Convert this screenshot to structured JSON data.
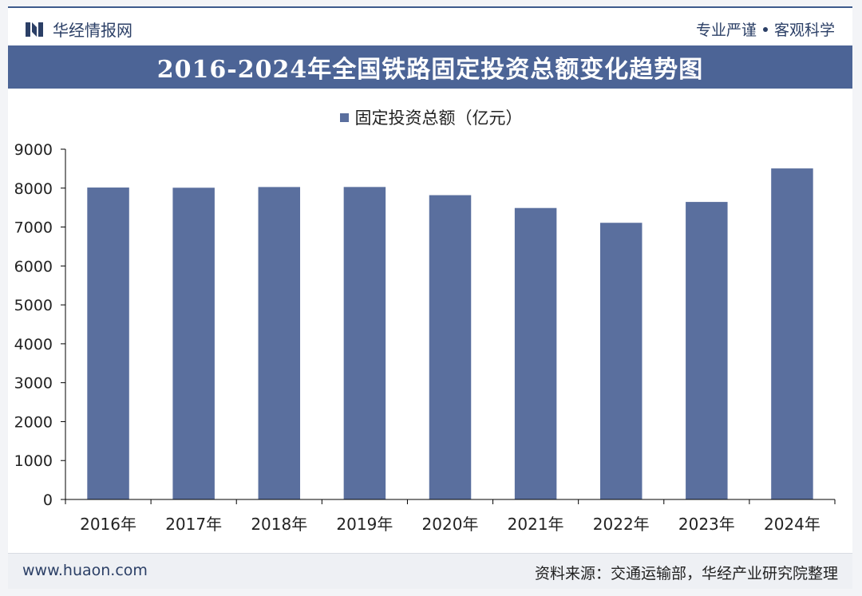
{
  "header": {
    "brand": "华经情报网",
    "slogan_left": "专业严谨",
    "slogan_right": "客观科学"
  },
  "footer": {
    "website": "www.huaon.com",
    "source": "资料来源：交通运输部，华经产业研究院整理"
  },
  "colors": {
    "bar": "#5a6f9e",
    "title_bar": "#4c6496",
    "brand": "#2b3f66"
  },
  "chart_data": {
    "type": "bar",
    "title": "2016-2024年全国铁路固定投资总额变化趋势图",
    "categories": [
      "2016年",
      "2017年",
      "2018年",
      "2019年",
      "2020年",
      "2021年",
      "2022年",
      "2023年",
      "2024年"
    ],
    "series": [
      {
        "name": "固定投资总额（亿元）",
        "values": [
          8015,
          8010,
          8028,
          8029,
          7819,
          7489,
          7109,
          7645,
          8506
        ]
      }
    ],
    "xlabel": "",
    "ylabel": "",
    "ylim": [
      0,
      9000
    ],
    "yticks": [
      0,
      1000,
      2000,
      3000,
      4000,
      5000,
      6000,
      7000,
      8000,
      9000
    ],
    "grid": false,
    "legend_position": "top-center"
  }
}
